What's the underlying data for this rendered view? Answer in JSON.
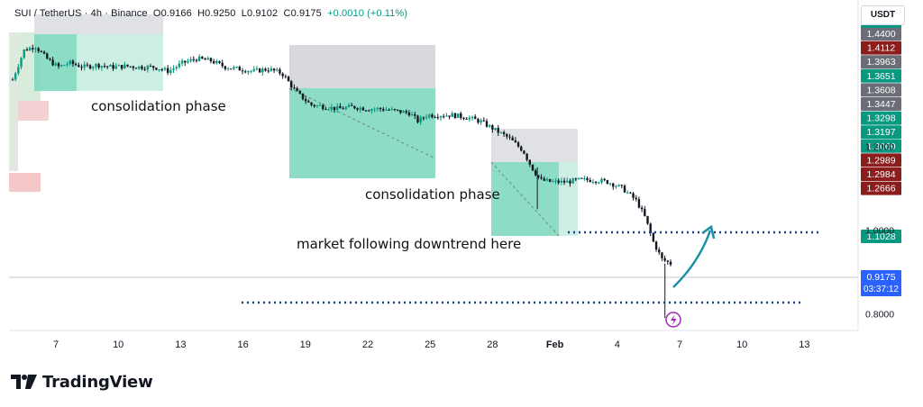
{
  "header": {
    "symbol": "SUI / TetherUS · 4h · Binance",
    "open": "O0.9166",
    "high": "H0.9250",
    "low": "L0.9102",
    "close": "C0.9175",
    "change": "+0.0010 (+0.11%)"
  },
  "currency_label": "USDT",
  "annotations": {
    "consolidation_1": "consolidation phase",
    "consolidation_2": "consolidation phase",
    "downtrend": "market following downtrend here"
  },
  "brand": {
    "name": "TradingView",
    "logo_icon": "tradingview-logo-icon"
  },
  "colors": {
    "zone_green": "#7fd8c0",
    "zone_gray": "#d7d9dd",
    "zone_red": "#f4c7c9",
    "bull": "#089981",
    "bear": "#131722",
    "arrow": "#1a8fa8",
    "dotted": "#1a3f8a",
    "label_green": "#089981",
    "label_red": "#8b1d1d",
    "label_gray": "#6b6e76",
    "label_blue": "#2962ff"
  },
  "chart_data": {
    "type": "candlestick",
    "x_ticks": [
      "7",
      "10",
      "13",
      "16",
      "19",
      "22",
      "25",
      "28",
      "Feb",
      "4",
      "7",
      "10",
      "13"
    ],
    "y_ticks": [
      1.2,
      1.0,
      0.8
    ],
    "ylim": [
      0.76,
      1.49
    ],
    "price_labels": [
      {
        "value": "1.4400",
        "kind": "gray"
      },
      {
        "value": "1.4112",
        "kind": "red"
      },
      {
        "value": "1.3963",
        "kind": "gray"
      },
      {
        "value": "1.3651",
        "kind": "green"
      },
      {
        "value": "1.3608",
        "kind": "gray"
      },
      {
        "value": "1.3447",
        "kind": "gray"
      },
      {
        "value": "1.3298",
        "kind": "green"
      },
      {
        "value": "1.3197",
        "kind": "green"
      },
      {
        "value": "1.3069",
        "kind": "green"
      },
      {
        "value": "1.2989",
        "kind": "red"
      },
      {
        "value": "1.2984",
        "kind": "red"
      },
      {
        "value": "1.2666",
        "kind": "red"
      },
      {
        "value": "1.1028",
        "kind": "green"
      }
    ],
    "current_price": "0.9175",
    "countdown": "03:37:12",
    "support_level": 0.8,
    "resistance_level": 1.1,
    "close_path": [
      [
        0,
        1.36
      ],
      [
        0.4,
        1.43
      ],
      [
        0.8,
        1.44
      ],
      [
        1.2,
        1.41
      ],
      [
        1.6,
        1.39
      ],
      [
        2,
        1.4
      ],
      [
        2.5,
        1.39
      ],
      [
        3,
        1.395
      ],
      [
        3.5,
        1.39
      ],
      [
        4,
        1.392
      ],
      [
        4.5,
        1.39
      ],
      [
        5,
        1.39
      ],
      [
        5.5,
        1.38
      ],
      [
        6,
        1.4
      ],
      [
        6.5,
        1.41
      ],
      [
        7,
        1.405
      ],
      [
        7.5,
        1.39
      ],
      [
        8,
        1.385
      ],
      [
        8.5,
        1.38
      ],
      [
        9,
        1.385
      ],
      [
        9.5,
        1.375
      ],
      [
        10,
        1.33
      ],
      [
        10.5,
        1.3
      ],
      [
        11,
        1.295
      ],
      [
        11.5,
        1.29
      ],
      [
        12,
        1.295
      ],
      [
        12.5,
        1.29
      ],
      [
        13,
        1.29
      ],
      [
        13.5,
        1.285
      ],
      [
        14,
        1.28
      ],
      [
        14.3,
        1.26
      ],
      [
        14.6,
        1.275
      ],
      [
        15,
        1.275
      ],
      [
        15.5,
        1.275
      ],
      [
        16,
        1.27
      ],
      [
        16.5,
        1.26
      ],
      [
        17,
        1.24
      ],
      [
        17.5,
        1.22
      ],
      [
        18,
        1.19
      ],
      [
        18.3,
        1.15
      ],
      [
        18.6,
        1.12
      ],
      [
        19,
        1.115
      ],
      [
        19.5,
        1.115
      ],
      [
        20,
        1.12
      ],
      [
        20.5,
        1.12
      ],
      [
        21,
        1.115
      ],
      [
        21.5,
        1.1
      ],
      [
        22,
        1.07
      ],
      [
        22.3,
        1.03
      ],
      [
        22.6,
        0.97
      ],
      [
        22.9,
        0.93
      ],
      [
        23.2,
        0.92
      ]
    ]
  }
}
